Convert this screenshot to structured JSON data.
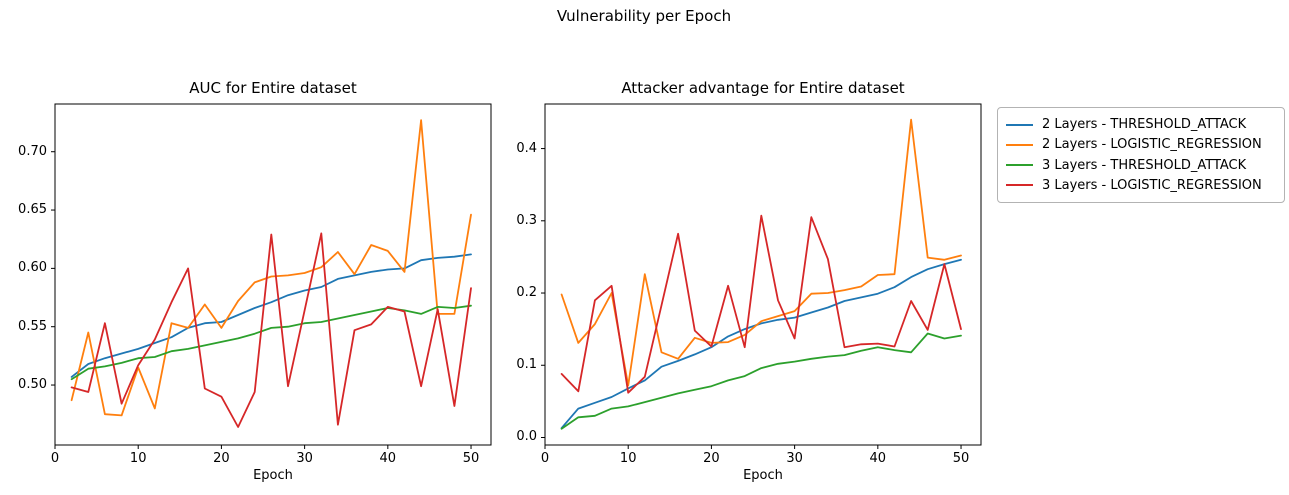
{
  "figure": {
    "suptitle": "Vulnerability per Epoch"
  },
  "legend": {
    "items": [
      {
        "label": "2 Layers - THRESHOLD_ATTACK",
        "color": "#1f77b4"
      },
      {
        "label": "2 Layers - LOGISTIC_REGRESSION",
        "color": "#ff7f0e"
      },
      {
        "label": "3 Layers - THRESHOLD_ATTACK",
        "color": "#2ca02c"
      },
      {
        "label": "3 Layers - LOGISTIC_REGRESSION",
        "color": "#d62728"
      }
    ]
  },
  "chart_data": [
    {
      "type": "line",
      "title": "AUC for Entire dataset",
      "xlabel": "Epoch",
      "grid": false,
      "x": [
        2,
        4,
        6,
        8,
        10,
        12,
        14,
        16,
        18,
        20,
        22,
        24,
        26,
        28,
        30,
        32,
        34,
        36,
        38,
        40,
        42,
        44,
        46,
        48,
        50
      ],
      "xlim": [
        0,
        52.4
      ],
      "ylim": [
        0.4486,
        0.7409
      ],
      "x_ticks": {
        "values": [
          0,
          10,
          20,
          30,
          40,
          50
        ],
        "labels": [
          "0",
          "10",
          "20",
          "30",
          "40",
          "50"
        ]
      },
      "y_ticks": {
        "values": [
          0.5,
          0.55,
          0.6,
          0.65,
          0.7
        ],
        "labels": [
          "0.50",
          "0.55",
          "0.60",
          "0.65",
          "0.70"
        ]
      },
      "series": [
        {
          "name": "2 Layers - THRESHOLD_ATTACK",
          "color": "#1f77b4",
          "values": [
            0.507,
            0.518,
            0.523,
            0.527,
            0.531,
            0.536,
            0.541,
            0.549,
            0.553,
            0.554,
            0.56,
            0.566,
            0.571,
            0.577,
            0.581,
            0.584,
            0.591,
            0.594,
            0.597,
            0.599,
            0.6,
            0.607,
            0.609,
            0.61,
            0.612
          ]
        },
        {
          "name": "2 Layers - LOGISTIC_REGRESSION",
          "color": "#ff7f0e",
          "values": [
            0.487,
            0.545,
            0.475,
            0.474,
            0.515,
            0.48,
            0.553,
            0.549,
            0.569,
            0.549,
            0.572,
            0.588,
            0.593,
            0.594,
            0.596,
            0.601,
            0.614,
            0.595,
            0.62,
            0.615,
            0.597,
            0.727,
            0.561,
            0.561,
            0.646
          ]
        },
        {
          "name": "3 Layers - THRESHOLD_ATTACK",
          "color": "#2ca02c",
          "values": [
            0.505,
            0.514,
            0.516,
            0.519,
            0.523,
            0.524,
            0.529,
            0.531,
            0.534,
            0.537,
            0.54,
            0.544,
            0.549,
            0.55,
            0.553,
            0.554,
            0.557,
            0.56,
            0.563,
            0.566,
            0.564,
            0.561,
            0.567,
            0.566,
            0.568
          ]
        },
        {
          "name": "3 Layers - LOGISTIC_REGRESSION",
          "color": "#d62728",
          "values": [
            0.498,
            0.494,
            0.553,
            0.484,
            0.517,
            0.539,
            0.571,
            0.6,
            0.497,
            0.49,
            0.464,
            0.494,
            0.629,
            0.499,
            0.564,
            0.63,
            0.466,
            0.547,
            0.552,
            0.567,
            0.563,
            0.499,
            0.565,
            0.482,
            0.583
          ]
        }
      ]
    },
    {
      "type": "line",
      "title": "Attacker advantage for Entire dataset",
      "xlabel": "Epoch",
      "grid": false,
      "x": [
        2,
        4,
        6,
        8,
        10,
        12,
        14,
        16,
        18,
        20,
        22,
        24,
        26,
        28,
        30,
        32,
        34,
        36,
        38,
        40,
        42,
        44,
        46,
        48,
        50
      ],
      "xlim": [
        0,
        52.4
      ],
      "ylim": [
        -0.0104,
        0.4617
      ],
      "x_ticks": {
        "values": [
          0,
          10,
          20,
          30,
          40,
          50
        ],
        "labels": [
          "0",
          "10",
          "20",
          "30",
          "40",
          "50"
        ]
      },
      "y_ticks": {
        "values": [
          0.0,
          0.1,
          0.2,
          0.3,
          0.4
        ],
        "labels": [
          "0.0",
          "0.1",
          "0.2",
          "0.3",
          "0.4"
        ]
      },
      "series": [
        {
          "name": "2 Layers - THRESHOLD_ATTACK",
          "color": "#1f77b4",
          "values": [
            0.013,
            0.04,
            0.048,
            0.056,
            0.068,
            0.079,
            0.098,
            0.106,
            0.115,
            0.125,
            0.14,
            0.15,
            0.158,
            0.163,
            0.166,
            0.173,
            0.18,
            0.189,
            0.194,
            0.199,
            0.208,
            0.222,
            0.233,
            0.24,
            0.246
          ]
        },
        {
          "name": "2 Layers - LOGISTIC_REGRESSION",
          "color": "#ff7f0e",
          "values": [
            0.198,
            0.131,
            0.157,
            0.2,
            0.072,
            0.226,
            0.118,
            0.109,
            0.138,
            0.131,
            0.132,
            0.142,
            0.161,
            0.168,
            0.175,
            0.199,
            0.2,
            0.204,
            0.209,
            0.225,
            0.226,
            0.44,
            0.249,
            0.246,
            0.252
          ]
        },
        {
          "name": "3 Layers - THRESHOLD_ATTACK",
          "color": "#2ca02c",
          "values": [
            0.012,
            0.028,
            0.03,
            0.04,
            0.043,
            0.049,
            0.055,
            0.061,
            0.066,
            0.071,
            0.079,
            0.085,
            0.096,
            0.102,
            0.105,
            0.109,
            0.112,
            0.114,
            0.12,
            0.125,
            0.121,
            0.118,
            0.144,
            0.137,
            0.141
          ]
        },
        {
          "name": "3 Layers - LOGISTIC_REGRESSION",
          "color": "#d62728",
          "values": [
            0.088,
            0.064,
            0.19,
            0.21,
            0.062,
            0.084,
            0.183,
            0.282,
            0.148,
            0.126,
            0.21,
            0.125,
            0.307,
            0.19,
            0.137,
            0.305,
            0.247,
            0.125,
            0.129,
            0.13,
            0.126,
            0.189,
            0.149,
            0.24,
            0.15
          ]
        }
      ]
    }
  ]
}
